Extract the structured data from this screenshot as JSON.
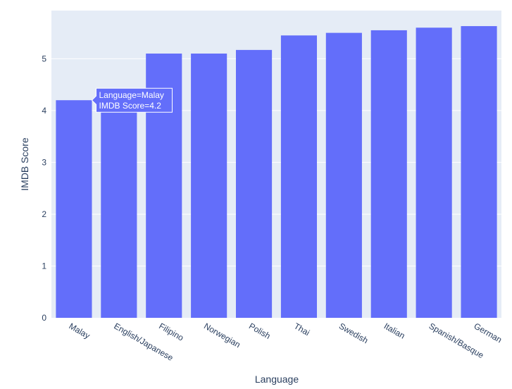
{
  "chart_data": {
    "type": "bar",
    "xlabel": "Language",
    "ylabel": "IMDB Score",
    "categories": [
      "Malay",
      "English/Japanese",
      "Filipino",
      "Norwegian",
      "Polish",
      "Thai",
      "Swedish",
      "Italian",
      "Spanish/Basque",
      "German"
    ],
    "values": [
      4.2,
      4.2,
      5.1,
      5.1,
      5.17,
      5.45,
      5.5,
      5.55,
      5.6,
      5.63
    ],
    "yticks": [
      "0",
      "1",
      "2",
      "3",
      "4",
      "5"
    ],
    "ylim": [
      0,
      5.93
    ],
    "grid": true,
    "colors": {
      "bar": "#636efa",
      "plot_bg": "#e5ecf6",
      "grid": "#ffffff",
      "text": "#2a3f5f"
    },
    "hover": {
      "line1": "Language=Malay",
      "line2": "IMDB Score=4.2",
      "category_index": 0
    }
  }
}
